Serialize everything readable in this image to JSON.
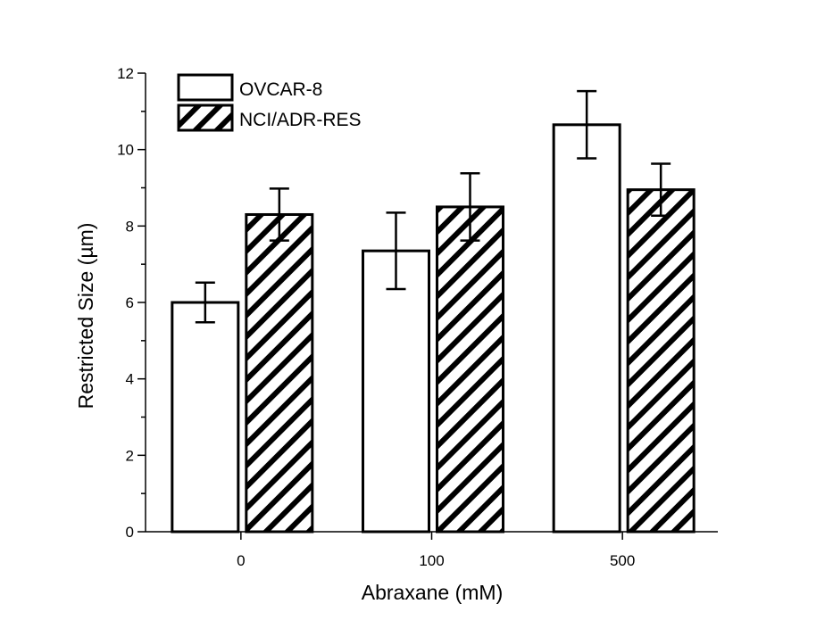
{
  "chart_data": {
    "type": "bar",
    "title": "",
    "xlabel": "Abraxane (mM)",
    "ylabel": "Restricted Size (µm)",
    "categories": [
      "0",
      "100",
      "500"
    ],
    "ylim": [
      0,
      12
    ],
    "yticks": [
      "0",
      "2",
      "4",
      "6",
      "8",
      "10",
      "12"
    ],
    "legend_position": "top-left",
    "grid": false,
    "series": [
      {
        "name": "OVCAR-8",
        "fill": "open",
        "values": [
          6.0,
          7.35,
          10.65
        ],
        "errors": [
          0.52,
          1.0,
          0.88
        ]
      },
      {
        "name": "NCI/ADR-RES",
        "fill": "hatched",
        "values": [
          8.3,
          8.5,
          8.95
        ],
        "errors": [
          0.68,
          0.88,
          0.68
        ]
      }
    ]
  },
  "colors": {
    "stroke": "#000000",
    "background": "#ffffff"
  }
}
